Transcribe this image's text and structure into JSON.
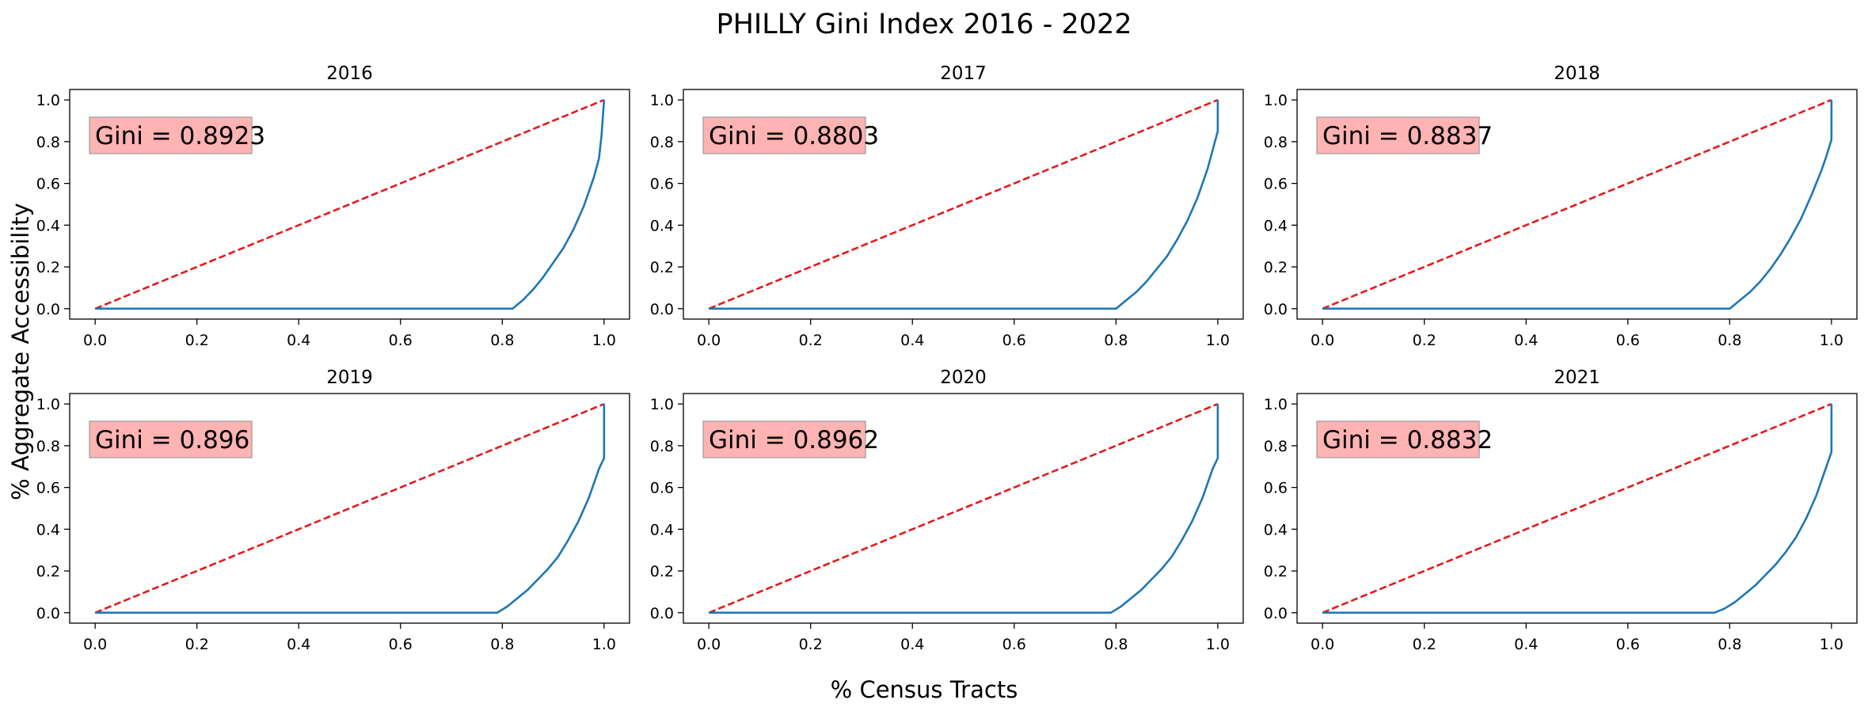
{
  "chart_data": {
    "type": "line",
    "title": "PHILLY Gini Index 2016 - 2022",
    "xlabel": "% Census Tracts",
    "ylabel": "% Aggregate Accessibility",
    "xlim": [
      -0.05,
      1.05
    ],
    "ylim": [
      -0.05,
      1.05
    ],
    "xticks": [
      "0.0",
      "0.2",
      "0.4",
      "0.6",
      "0.8",
      "1.0"
    ],
    "yticks": [
      "0.0",
      "0.2",
      "0.4",
      "0.6",
      "0.8",
      "1.0"
    ],
    "grid": false,
    "colors": {
      "lorenz": "#1f77b4",
      "equality": "#e41a1c",
      "annotation_bg": "#ffb3b3"
    },
    "panels": [
      {
        "title": "2016",
        "gini_label": "Gini = 0.8923",
        "equality": {
          "x": [
            0,
            1
          ],
          "y": [
            0,
            1
          ]
        },
        "lorenz": {
          "x": [
            0,
            0.82,
            0.84,
            0.86,
            0.88,
            0.9,
            0.92,
            0.94,
            0.96,
            0.98,
            0.99,
            0.995,
            1.0
          ],
          "y": [
            0,
            0,
            0.04,
            0.09,
            0.15,
            0.22,
            0.29,
            0.38,
            0.49,
            0.63,
            0.72,
            0.83,
            1.0
          ]
        }
      },
      {
        "title": "2017",
        "gini_label": "Gini = 0.8803",
        "equality": {
          "x": [
            0,
            1
          ],
          "y": [
            0,
            1
          ]
        },
        "lorenz": {
          "x": [
            0,
            0.8,
            0.82,
            0.84,
            0.86,
            0.88,
            0.9,
            0.92,
            0.94,
            0.96,
            0.98,
            0.99,
            1.0,
            1.0
          ],
          "y": [
            0,
            0,
            0.04,
            0.08,
            0.13,
            0.19,
            0.25,
            0.33,
            0.42,
            0.53,
            0.67,
            0.76,
            0.85,
            1.0
          ]
        }
      },
      {
        "title": "2018",
        "gini_label": "Gini = 0.8837",
        "equality": {
          "x": [
            0,
            1
          ],
          "y": [
            0,
            1
          ]
        },
        "lorenz": {
          "x": [
            0,
            0.8,
            0.82,
            0.84,
            0.86,
            0.88,
            0.9,
            0.92,
            0.94,
            0.96,
            0.98,
            0.99,
            1.0,
            1.0
          ],
          "y": [
            0,
            0,
            0.04,
            0.08,
            0.13,
            0.19,
            0.26,
            0.34,
            0.43,
            0.54,
            0.66,
            0.73,
            0.81,
            1.0
          ]
        }
      },
      {
        "title": "2019",
        "gini_label": "Gini = 0.896",
        "equality": {
          "x": [
            0,
            1
          ],
          "y": [
            0,
            1
          ]
        },
        "lorenz": {
          "x": [
            0,
            0.79,
            0.81,
            0.83,
            0.85,
            0.87,
            0.89,
            0.91,
            0.93,
            0.95,
            0.97,
            0.99,
            1.0,
            1.0
          ],
          "y": [
            0,
            0,
            0.03,
            0.07,
            0.11,
            0.16,
            0.21,
            0.27,
            0.35,
            0.44,
            0.55,
            0.69,
            0.74,
            1.0
          ]
        }
      },
      {
        "title": "2020",
        "gini_label": "Gini = 0.8962",
        "equality": {
          "x": [
            0,
            1
          ],
          "y": [
            0,
            1
          ]
        },
        "lorenz": {
          "x": [
            0,
            0.79,
            0.81,
            0.83,
            0.85,
            0.87,
            0.89,
            0.91,
            0.93,
            0.95,
            0.97,
            0.99,
            1.0,
            1.0
          ],
          "y": [
            0,
            0,
            0.03,
            0.07,
            0.11,
            0.16,
            0.21,
            0.27,
            0.35,
            0.44,
            0.55,
            0.69,
            0.74,
            1.0
          ]
        }
      },
      {
        "title": "2021",
        "gini_label": "Gini = 0.8832",
        "equality": {
          "x": [
            0,
            1
          ],
          "y": [
            0,
            1
          ]
        },
        "lorenz": {
          "x": [
            0,
            0.77,
            0.79,
            0.81,
            0.83,
            0.85,
            0.87,
            0.89,
            0.91,
            0.93,
            0.95,
            0.97,
            0.99,
            1.0,
            1.0
          ],
          "y": [
            0,
            0,
            0.02,
            0.05,
            0.09,
            0.13,
            0.18,
            0.23,
            0.29,
            0.36,
            0.45,
            0.56,
            0.7,
            0.77,
            1.0
          ]
        }
      }
    ]
  }
}
